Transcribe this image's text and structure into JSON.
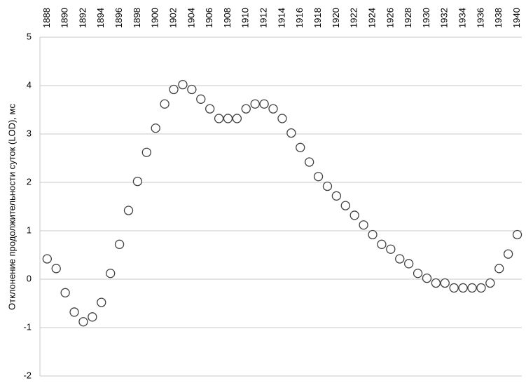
{
  "chart_data": {
    "type": "scatter",
    "y_label": "Отклонение продолжительности суток (LOD), мс",
    "x": [
      1888,
      1889,
      1890,
      1891,
      1892,
      1893,
      1894,
      1895,
      1896,
      1897,
      1898,
      1899,
      1900,
      1901,
      1902,
      1903,
      1904,
      1905,
      1906,
      1907,
      1908,
      1909,
      1910,
      1911,
      1912,
      1913,
      1914,
      1915,
      1916,
      1917,
      1918,
      1919,
      1920,
      1921,
      1922,
      1923,
      1924,
      1925,
      1926,
      1927,
      1928,
      1929,
      1930,
      1931,
      1932,
      1933,
      1934,
      1935,
      1936,
      1937,
      1938,
      1939,
      1940
    ],
    "values": [
      0.42,
      0.22,
      -0.28,
      -0.68,
      -0.88,
      -0.78,
      -0.48,
      0.12,
      0.72,
      1.42,
      2.02,
      2.62,
      3.12,
      3.62,
      3.92,
      4.02,
      3.92,
      3.72,
      3.52,
      3.32,
      3.32,
      3.32,
      3.52,
      3.62,
      3.62,
      3.52,
      3.32,
      3.02,
      2.72,
      2.42,
      2.12,
      1.92,
      1.72,
      1.52,
      1.32,
      1.12,
      0.92,
      0.72,
      0.62,
      0.42,
      0.32,
      0.12,
      0.02,
      -0.08,
      -0.08,
      -0.18,
      -0.18,
      -0.18,
      -0.18,
      -0.08,
      0.22,
      0.52,
      0.92
    ],
    "color": "#404040",
    "xlim": [
      1887.2,
      1940.5
    ],
    "xticks": [
      1888,
      1890,
      1892,
      1894,
      1896,
      1898,
      1900,
      1902,
      1904,
      1906,
      1908,
      1910,
      1912,
      1914,
      1916,
      1918,
      1920,
      1922,
      1924,
      1926,
      1928,
      1930,
      1932,
      1934,
      1936,
      1938,
      1940
    ],
    "ylim": [
      -2,
      5
    ],
    "yticks": [
      -2,
      -1,
      0,
      1,
      2,
      3,
      4,
      5
    ],
    "grid": true
  }
}
